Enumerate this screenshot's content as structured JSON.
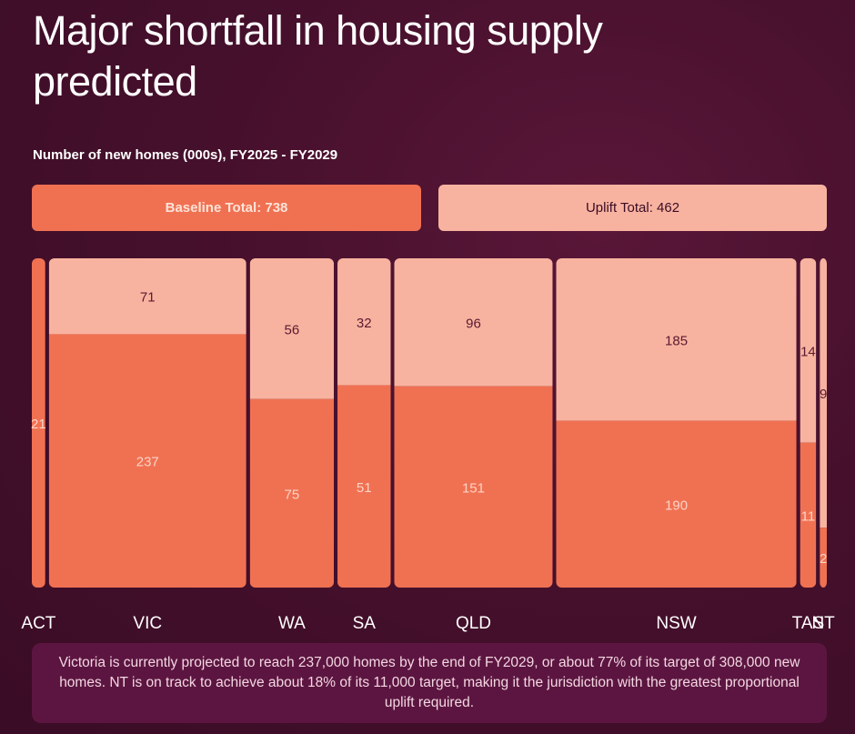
{
  "title": "Major shortfall in housing supply predicted",
  "subtitle": "Number of new homes (000s), FY2025 - FY2029",
  "totals": {
    "baseline": "Baseline Total: 738",
    "uplift": "Uplift Total: 462"
  },
  "colors": {
    "baseline": "#f07152",
    "uplift": "#f8b3a0",
    "background": "#46102c"
  },
  "chart_data": {
    "type": "bar",
    "stacked": true,
    "categories": [
      "ACT",
      "VIC",
      "WA",
      "SA",
      "QLD",
      "NSW",
      "TAS",
      "NT"
    ],
    "series": [
      {
        "name": "Baseline",
        "values": [
          21,
          237,
          75,
          51,
          151,
          190,
          11,
          2
        ]
      },
      {
        "name": "Uplift",
        "values": [
          null,
          71,
          56,
          32,
          96,
          185,
          14,
          9
        ]
      }
    ],
    "title": "Major shortfall in housing supply predicted",
    "subtitle": "Number of new homes (000s), FY2025 - FY2029"
  },
  "note": "Victoria is currently projected to reach 237,000 homes by the end of FY2029, or about 77% of its target of 308,000 new homes. NT is on track to achieve about 18% of its 11,000 target, making it the jurisdiction with the greatest proportional uplift required."
}
